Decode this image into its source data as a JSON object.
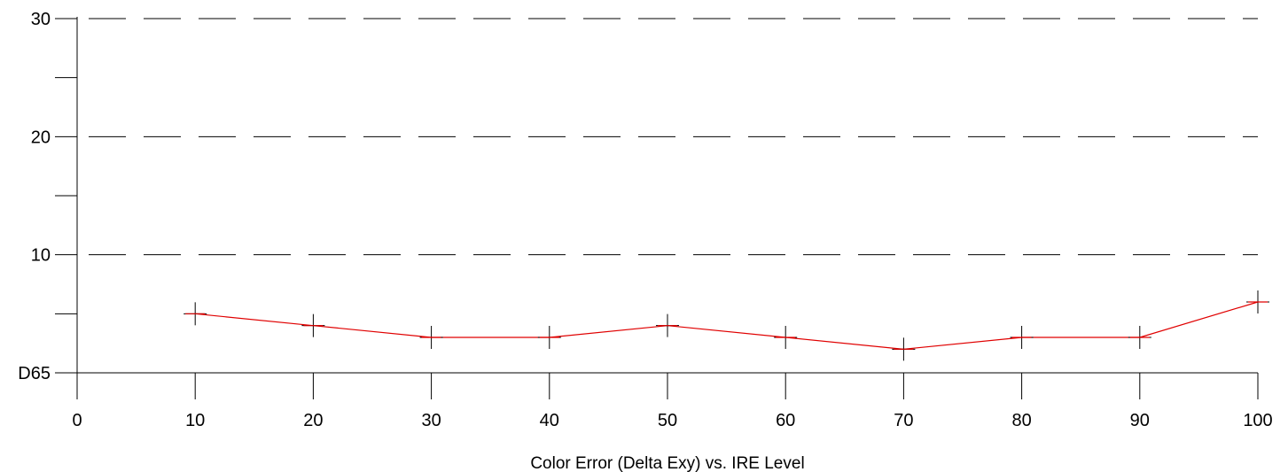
{
  "chart_data": {
    "type": "line",
    "xlabel": "Color Error (Delta Exy) vs. IRE Level",
    "ylabel": "",
    "x_ticks": [
      "0",
      "10",
      "20",
      "30",
      "40",
      "50",
      "60",
      "70",
      "80",
      "90",
      "100"
    ],
    "y_ticks": [
      {
        "value": 0,
        "label": "D65"
      },
      {
        "value": 10,
        "label": "10"
      },
      {
        "value": 20,
        "label": "20"
      },
      {
        "value": 30,
        "label": "30"
      }
    ],
    "xlim": [
      0,
      100
    ],
    "ylim": [
      0,
      30
    ],
    "grid": "dashed horizontal at 10, 20, 30",
    "series": [
      {
        "color": "#e00000",
        "marker": "plus",
        "x": [
          10,
          20,
          30,
          40,
          50,
          60,
          70,
          80,
          90,
          100
        ],
        "y": [
          5,
          4,
          3,
          3,
          4,
          3,
          2,
          3,
          3,
          6
        ]
      }
    ]
  }
}
